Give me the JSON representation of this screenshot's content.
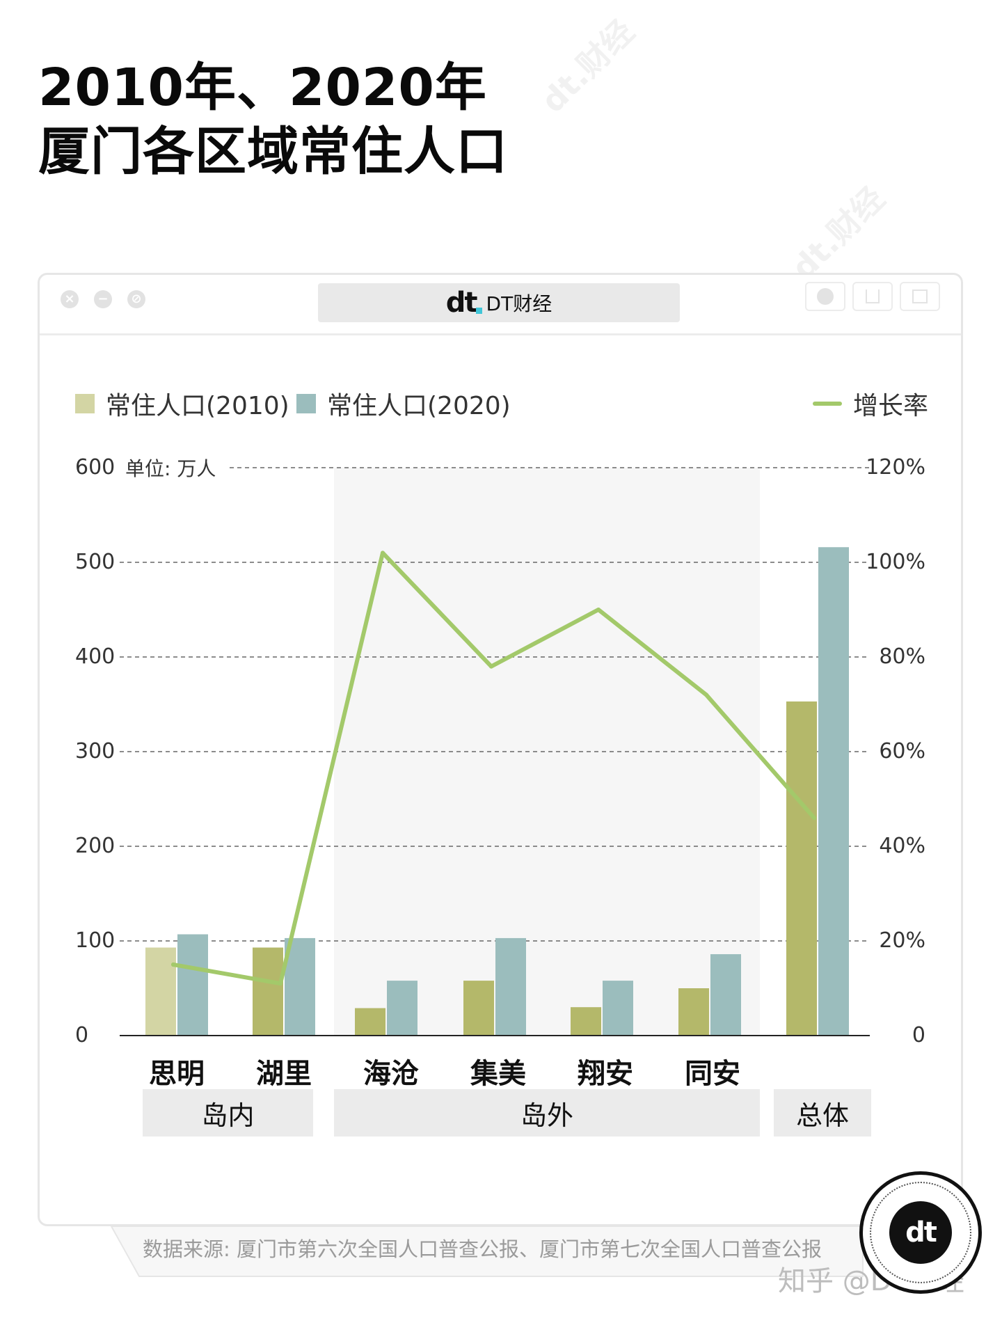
{
  "title": {
    "line1": "2010年、2020年",
    "line2": "厦门各区域常住人口"
  },
  "window": {
    "brand": "DT财经",
    "logo": "dt",
    "controls": [
      "close-icon",
      "minimize-icon",
      "block-icon"
    ]
  },
  "colors": {
    "bar2010": "#b4b86a",
    "bar2010_first": "#d3d5a4",
    "bar2020": "#9bbdbd",
    "line": "#a3c96a",
    "shade": "#f6f6f6"
  },
  "legend": {
    "s2010": "常住人口(2010)",
    "s2020": "常住人口(2020)",
    "rate": "增长率"
  },
  "unit": "单位: 万人",
  "chart_data": {
    "type": "bar",
    "categories": [
      "思明",
      "湖里",
      "海沧",
      "集美",
      "翔安",
      "同安",
      ""
    ],
    "series": [
      {
        "name": "常住人口(2010)",
        "values": [
          93,
          93,
          29,
          58,
          30,
          50,
          353
        ]
      },
      {
        "name": "常住人口(2020)",
        "values": [
          107,
          103,
          58,
          103,
          58,
          86,
          516
        ]
      },
      {
        "name": "增长率",
        "type": "line",
        "axis": "right",
        "values": [
          15,
          11,
          102,
          78,
          90,
          72,
          46
        ]
      }
    ],
    "y_left": {
      "range": [
        0,
        600
      ],
      "ticks": [
        "0",
        "100",
        "200",
        "300",
        "400",
        "500",
        "600"
      ]
    },
    "y_right": {
      "range": [
        0,
        120
      ],
      "ticks": [
        "0",
        "20%",
        "40%",
        "60%",
        "80%",
        "100%",
        "120%"
      ]
    },
    "groups": [
      {
        "label": "岛内",
        "categories": [
          "思明",
          "湖里"
        ]
      },
      {
        "label": "岛外",
        "categories": [
          "海沧",
          "集美",
          "翔安",
          "同安"
        ]
      },
      {
        "label": "总体",
        "categories": [
          ""
        ]
      }
    ],
    "grid": true,
    "legend_position": "top"
  },
  "source": "数据来源: 厦门市第六次全国人口普查公报、厦门市第七次全国人口普查公报",
  "footer": {
    "zhihu": "知乎 @DT财经",
    "badge": "dt"
  }
}
